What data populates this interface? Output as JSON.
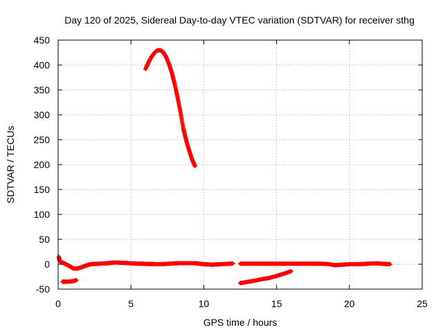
{
  "chart_data": {
    "type": "scatter",
    "title": "Day 120 of 2025, Sidereal Day-to-day VTEC variation (SDTVAR) for receiver sthg",
    "xlabel": "GPS time / hours",
    "ylabel": "SDTVAR / TECUs",
    "xlim": [
      0,
      25
    ],
    "ylim": [
      -50,
      450
    ],
    "xticks": [
      0,
      5,
      10,
      15,
      20,
      25
    ],
    "yticks": [
      -50,
      0,
      50,
      100,
      150,
      200,
      250,
      300,
      350,
      400,
      450
    ],
    "grid": true,
    "legend": "none",
    "marker_color": "#ff0000",
    "series": [
      {
        "points": [
          [
            0.05,
            15
          ],
          [
            0.1,
            8
          ],
          [
            0.2,
            4
          ],
          [
            0.4,
            2
          ],
          [
            0.6,
            -1
          ],
          [
            0.8,
            -4
          ],
          [
            1.0,
            -8
          ],
          [
            1.2,
            -9
          ],
          [
            1.4,
            -8
          ],
          [
            1.6,
            -6
          ],
          [
            1.8,
            -4
          ],
          [
            2.0,
            -2
          ],
          [
            2.2,
            0
          ],
          [
            2.5,
            0.5
          ],
          [
            2.8,
            1
          ],
          [
            3.1,
            1.5
          ],
          [
            3.4,
            2
          ],
          [
            3.7,
            3
          ],
          [
            4.0,
            3.5
          ],
          [
            4.3,
            3
          ],
          [
            4.6,
            2.5
          ],
          [
            4.9,
            2
          ],
          [
            5.2,
            1.5
          ],
          [
            5.5,
            1
          ],
          [
            5.8,
            1
          ],
          [
            6.1,
            0.5
          ],
          [
            6.4,
            0.5
          ],
          [
            6.7,
            0
          ],
          [
            7.0,
            0
          ],
          [
            7.3,
            0.5
          ],
          [
            7.6,
            1
          ],
          [
            7.9,
            1.5
          ],
          [
            8.2,
            2
          ],
          [
            8.5,
            2
          ],
          [
            8.8,
            2
          ],
          [
            9.1,
            2
          ],
          [
            9.4,
            2
          ],
          [
            9.7,
            1
          ],
          [
            10.0,
            0
          ],
          [
            10.3,
            -0.5
          ],
          [
            10.6,
            -1
          ],
          [
            10.9,
            -0.5
          ],
          [
            11.2,
            0
          ],
          [
            11.5,
            0.5
          ],
          [
            11.8,
            1
          ],
          [
            12.0,
            1.5
          ]
        ]
      },
      {
        "points": [
          [
            0.3,
            -35
          ],
          [
            0.6,
            -35
          ],
          [
            0.9,
            -34.5
          ],
          [
            1.1,
            -33.5
          ],
          [
            1.25,
            -32
          ]
        ]
      },
      {
        "points": [
          [
            6.0,
            392
          ],
          [
            6.2,
            405
          ],
          [
            6.4,
            416
          ],
          [
            6.6,
            424
          ],
          [
            6.8,
            429
          ],
          [
            7.0,
            430
          ],
          [
            7.2,
            426
          ],
          [
            7.4,
            417
          ],
          [
            7.6,
            403
          ],
          [
            7.8,
            385
          ],
          [
            8.0,
            362
          ],
          [
            8.2,
            335
          ],
          [
            8.4,
            305
          ],
          [
            8.6,
            272
          ],
          [
            8.8,
            248
          ],
          [
            9.0,
            228
          ],
          [
            9.2,
            210
          ],
          [
            9.4,
            197
          ]
        ]
      },
      {
        "points": [
          [
            12.5,
            1
          ],
          [
            13.0,
            1
          ],
          [
            13.5,
            1
          ],
          [
            14.0,
            1
          ],
          [
            14.5,
            1
          ],
          [
            15.0,
            1
          ],
          [
            15.5,
            1
          ],
          [
            16.0,
            1
          ],
          [
            16.5,
            1
          ],
          [
            17.0,
            1
          ],
          [
            17.5,
            1
          ],
          [
            18.0,
            1
          ],
          [
            18.5,
            0.5
          ],
          [
            19.0,
            -2
          ],
          [
            19.5,
            -1
          ],
          [
            20.0,
            0
          ],
          [
            20.5,
            0
          ],
          [
            21.0,
            0.5
          ],
          [
            21.5,
            1.5
          ],
          [
            22.0,
            1.5
          ],
          [
            22.4,
            0.5
          ],
          [
            22.8,
            0
          ]
        ]
      },
      {
        "points": [
          [
            12.5,
            -38
          ],
          [
            13.0,
            -35.5
          ],
          [
            13.5,
            -33
          ],
          [
            14.0,
            -30
          ],
          [
            14.5,
            -27.5
          ],
          [
            15.0,
            -23.5
          ],
          [
            15.5,
            -19
          ],
          [
            16.0,
            -14
          ]
        ]
      }
    ]
  }
}
